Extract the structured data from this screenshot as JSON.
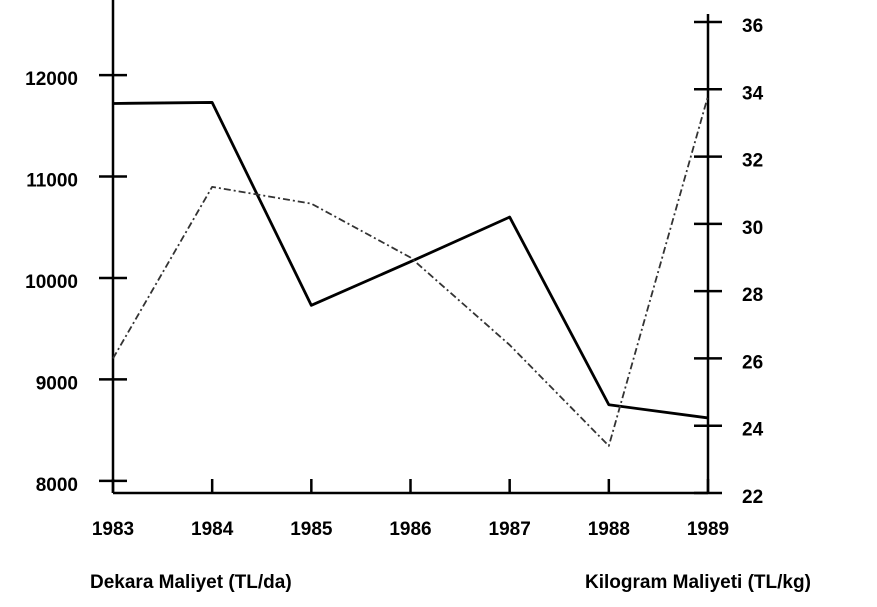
{
  "chart_data": {
    "type": "line",
    "categories": [
      "1983",
      "1984",
      "1985",
      "1986",
      "1987",
      "1988",
      "1989"
    ],
    "series": [
      {
        "color": "#000000",
        "values": [
          11720,
          11730,
          9730,
          10160,
          10600,
          8750,
          8620
        ]
      },
      {
        "color": "#333333",
        "axis": "y2",
        "dashed": true,
        "values": [
          26.0,
          31.1,
          30.6,
          29.0,
          26.4,
          23.4,
          33.8
        ]
      }
    ],
    "ylim": [
      7880,
      12740
    ],
    "yticks": [
      8000,
      9000,
      10000,
      11000,
      12000
    ],
    "y2lim": [
      22,
      36
    ],
    "y2ticks": [
      22,
      24,
      26,
      28,
      30,
      32,
      34,
      36
    ],
    "ylabel": "Dekara Maliyet (TL/da)",
    "y2label": "Kilogram Maliyeti (TL/kg)"
  }
}
